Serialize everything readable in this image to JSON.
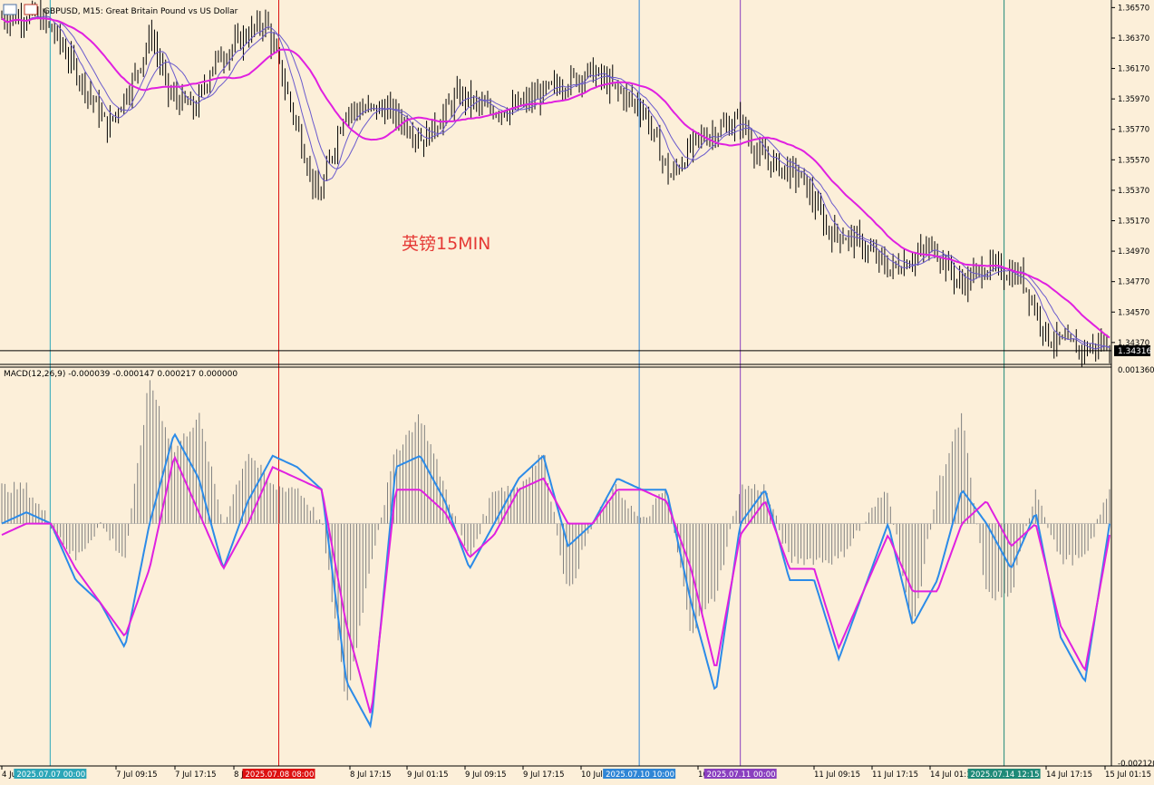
{
  "window": {
    "symbol_title": "GBPUSD, M15:  Great Britain Pound vs US Dollar",
    "annotation": "英镑15MIN",
    "current_price": "1.34316"
  },
  "colors": {
    "background": "#fcefd9",
    "candles": "#000000",
    "ma_slow": "#e020e0",
    "ma_fast": "#6a5acd",
    "macd_line": "#2b8be8",
    "signal_line": "#e020e0",
    "histogram": "#808080",
    "text": "#000000"
  },
  "chart_data": [
    {
      "type": "candlestick",
      "title": "GBPUSD, M15:  Great Britain Pound vs US Dollar",
      "ylim": [
        1.3425,
        1.3659
      ],
      "y_ticks": [
        "1.36570",
        "1.36370",
        "1.36170",
        "1.35970",
        "1.35770",
        "1.35570",
        "1.35370",
        "1.35170",
        "1.34970",
        "1.34770",
        "1.34570",
        "1.34370"
      ],
      "current_price_line": 1.34316,
      "overlays": [
        "MA (magenta)",
        "MA (slate blue)"
      ],
      "price_path": [
        {
          "t": 0,
          "p": 1.365
        },
        {
          "t": 4,
          "p": 1.3652
        },
        {
          "t": 6,
          "p": 1.364
        },
        {
          "t": 10,
          "p": 1.36
        },
        {
          "t": 12,
          "p": 1.3578
        },
        {
          "t": 15,
          "p": 1.361
        },
        {
          "t": 17,
          "p": 1.364
        },
        {
          "t": 19,
          "p": 1.36
        },
        {
          "t": 22,
          "p": 1.359
        },
        {
          "t": 24,
          "p": 1.362
        },
        {
          "t": 28,
          "p": 1.364
        },
        {
          "t": 30,
          "p": 1.3648
        },
        {
          "t": 33,
          "p": 1.359
        },
        {
          "t": 36,
          "p": 1.353
        },
        {
          "t": 39,
          "p": 1.359
        },
        {
          "t": 44,
          "p": 1.359
        },
        {
          "t": 48,
          "p": 1.357
        },
        {
          "t": 52,
          "p": 1.36
        },
        {
          "t": 55,
          "p": 1.359
        },
        {
          "t": 58,
          "p": 1.359
        },
        {
          "t": 63,
          "p": 1.3605
        },
        {
          "t": 67,
          "p": 1.3615
        },
        {
          "t": 73,
          "p": 1.359
        },
        {
          "t": 76,
          "p": 1.3545
        },
        {
          "t": 79,
          "p": 1.357
        },
        {
          "t": 84,
          "p": 1.3583
        },
        {
          "t": 86,
          "p": 1.356
        },
        {
          "t": 91,
          "p": 1.3545
        },
        {
          "t": 94,
          "p": 1.351
        },
        {
          "t": 97,
          "p": 1.3505
        },
        {
          "t": 101,
          "p": 1.3485
        },
        {
          "t": 106,
          "p": 1.35
        },
        {
          "t": 109,
          "p": 1.3475
        },
        {
          "t": 112,
          "p": 1.3487
        },
        {
          "t": 116,
          "p": 1.348
        },
        {
          "t": 119,
          "p": 1.344
        },
        {
          "t": 123,
          "p": 1.3432
        },
        {
          "t": 125,
          "p": 1.3436
        }
      ],
      "vertical_markers": [
        {
          "t": 5.5,
          "color": "#2ca6b8",
          "label": "2025.07.07 00:00"
        },
        {
          "t": 31.5,
          "color": "#dd1111",
          "label": "2025.07.08 08:00"
        },
        {
          "t": 72.5,
          "color": "#2f86d6",
          "label": "2025.07.10 10:00"
        },
        {
          "t": 84,
          "color": "#8a3fbf",
          "label": "2025.07.11 00:00"
        },
        {
          "t": 114,
          "color": "#1f8a78",
          "label": "2025.07.14 12:15"
        }
      ]
    },
    {
      "type": "line",
      "title": "MACD(12,26,9) -0.000039 -0.000147 0.000217 0.000000",
      "ylim": [
        -0.00212,
        0.00136
      ],
      "y_ticks": [
        "0.001360",
        "-0.002120"
      ],
      "series": [
        {
          "name": "MACD",
          "values": [
            0.0,
            0.0001,
            0.0,
            -0.0005,
            -0.0007,
            -0.0011,
            0.0,
            0.0008,
            0.0004,
            -0.0004,
            0.0002,
            0.0006,
            0.0005,
            0.0003,
            -0.0014,
            -0.0018,
            0.0005,
            0.0006,
            0.0002,
            -0.0004,
            0.0,
            0.0004,
            0.0006,
            -0.0002,
            0.0,
            0.0004,
            0.0003,
            0.0003,
            -0.0007,
            -0.0015,
            0.0,
            0.0003,
            -0.0005,
            -0.0005,
            -0.0012,
            -0.0006,
            0.0,
            -0.0009,
            -0.0005,
            0.0003,
            0.0,
            -0.0004,
            0.0001,
            -0.001,
            -0.0014,
            0.0
          ]
        },
        {
          "name": "Signal",
          "values": [
            -0.0001,
            0.0,
            0.0,
            -0.0004,
            -0.0007,
            -0.001,
            -0.0004,
            0.0006,
            0.0001,
            -0.0004,
            0.0,
            0.0005,
            0.0004,
            0.0003,
            -0.0009,
            -0.0017,
            0.0003,
            0.0003,
            0.0001,
            -0.0003,
            -0.0001,
            0.0003,
            0.0004,
            0.0,
            0.0,
            0.0003,
            0.0003,
            0.0002,
            -0.0004,
            -0.0013,
            -0.0001,
            0.0002,
            -0.0004,
            -0.0004,
            -0.0011,
            -0.0006,
            -0.0001,
            -0.0006,
            -0.0006,
            0.0,
            0.0002,
            -0.0002,
            0.0,
            -0.0009,
            -0.0013,
            -0.0001
          ]
        }
      ]
    }
  ],
  "x_axis": {
    "labels": [
      "4 Jul",
      "7 Jul 09:15",
      "7 Jul 17:15",
      "8 Jul",
      "8 Jul 17:15",
      "9 Jul 01:15",
      "9 Jul 09:15",
      "9 Jul 17:15",
      "10 Jul",
      "10 J",
      "11 Jul 09:15",
      "11 Jul 17:15",
      "14 Jul 01:15",
      "14 Jul 17:15",
      "15 Jul 01:15"
    ]
  }
}
